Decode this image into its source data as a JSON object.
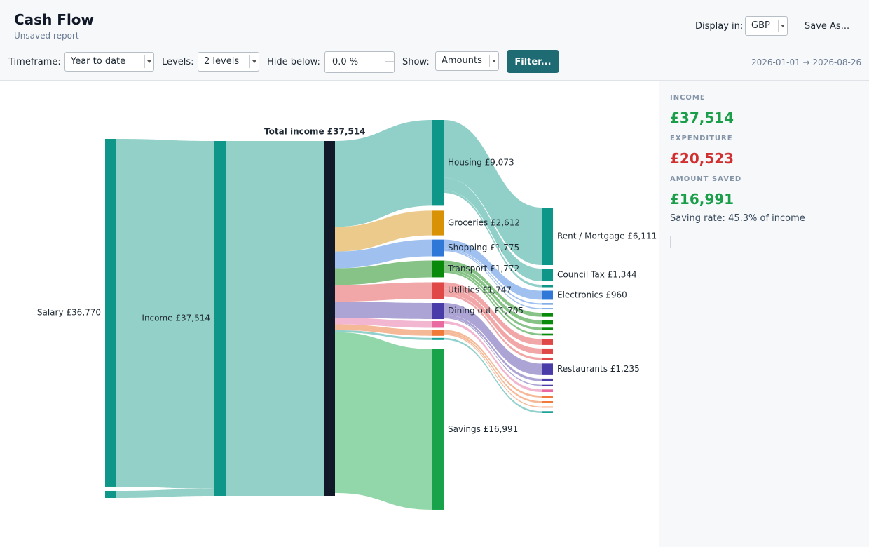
{
  "header": {
    "title": "Cash Flow",
    "subtitle": "Unsaved report",
    "display_label": "Display in:",
    "currency": "GBP",
    "save_as": "Save As...",
    "date_range": "2026-01-01 → 2026-08-26"
  },
  "toolbar": {
    "timeframe_label": "Timeframe:",
    "timeframe_value": "Year to date",
    "levels_label": "Levels:",
    "levels_value": "2 levels",
    "hide_label": "Hide below:",
    "hide_value": "0.0 %",
    "show_label": "Show:",
    "show_value": "Amounts",
    "filter_label": "Filter..."
  },
  "summary": {
    "income_label": "INCOME",
    "income_value": "£37,514",
    "expenditure_label": "EXPENDITURE",
    "expenditure_value": "£20,523",
    "saved_label": "AMOUNT SAVED",
    "saved_value": "£16,991",
    "saving_rate": "Saving rate: 45.3% of income",
    "colors": {
      "income": "#1a9e4a",
      "expenditure": "#d12f2f",
      "saved": "#1a9e4a"
    }
  },
  "chart_data": {
    "type": "sankey",
    "nodes": {
      "salary": {
        "label": "Salary",
        "amount": "£36,770",
        "value": 36770
      },
      "other_income": {
        "value": 744
      },
      "income": {
        "label": "Income",
        "amount": "£37,514",
        "value": 37514
      },
      "total": {
        "label": "Total income",
        "amount": "£37,514",
        "value": 37514
      },
      "categories": [
        {
          "id": "housing",
          "label": "Housing",
          "amount": "£9,073",
          "value": 9073,
          "color": "#0e9688"
        },
        {
          "id": "groceries",
          "label": "Groceries",
          "amount": "£2,612",
          "value": 2612,
          "color": "#d99206"
        },
        {
          "id": "shopping",
          "label": "Shopping",
          "amount": "£1,775",
          "value": 1775,
          "color": "#2f78d8"
        },
        {
          "id": "transport",
          "label": "Transport",
          "amount": "£1,772",
          "value": 1772,
          "color": "#0a8a0a"
        },
        {
          "id": "utilities",
          "label": "Utilities",
          "amount": "£1,747",
          "value": 1747,
          "color": "#e04848"
        },
        {
          "id": "dining",
          "label": "Dining out",
          "amount": "£1,705",
          "value": 1705,
          "color": "#4a3ca8"
        },
        {
          "id": "pink",
          "label": "",
          "amount": "",
          "value": 700,
          "color": "#e86aa0"
        },
        {
          "id": "orange",
          "label": "",
          "amount": "",
          "value": 620,
          "color": "#ef7a3a"
        },
        {
          "id": "teal",
          "label": "",
          "amount": "",
          "value": 220,
          "color": "#17a095"
        },
        {
          "id": "savings",
          "label": "Savings",
          "amount": "£16,991",
          "value": 16991,
          "color": "#18a34a"
        }
      ],
      "subcategories": [
        {
          "label": "Rent / Mortgage",
          "amount": "£6,111",
          "value": 6111,
          "color": "#0e9688",
          "parent": "housing"
        },
        {
          "label": "Council Tax",
          "amount": "£1,344",
          "value": 1344,
          "color": "#0e9688",
          "parent": "housing"
        },
        {
          "label": "",
          "amount": "",
          "value": 260,
          "color": "#0e9688",
          "parent": "housing"
        },
        {
          "label": "Electronics",
          "amount": "£960",
          "value": 960,
          "color": "#2f78d8",
          "parent": "shopping"
        },
        {
          "label": "",
          "amount": "",
          "value": 150,
          "color": "#2f78d8",
          "parent": "shopping"
        },
        {
          "label": "",
          "amount": "",
          "value": 120,
          "color": "#2f78d8",
          "parent": "shopping"
        },
        {
          "label": "",
          "amount": "",
          "value": 420,
          "color": "#0a8a0a",
          "parent": "transport"
        },
        {
          "label": "",
          "amount": "",
          "value": 420,
          "color": "#0a8a0a",
          "parent": "transport"
        },
        {
          "label": "",
          "amount": "",
          "value": 250,
          "color": "#0a8a0a",
          "parent": "transport"
        },
        {
          "label": "",
          "amount": "",
          "value": 200,
          "color": "#0a8a0a",
          "parent": "transport"
        },
        {
          "label": "",
          "amount": "",
          "value": 640,
          "color": "#e04848",
          "parent": "utilities"
        },
        {
          "label": "",
          "amount": "",
          "value": 600,
          "color": "#e04848",
          "parent": "utilities"
        },
        {
          "label": "",
          "amount": "",
          "value": 250,
          "color": "#e04848",
          "parent": "utilities"
        },
        {
          "label": "Restaurants",
          "amount": "£1,235",
          "value": 1235,
          "color": "#4a3ca8",
          "parent": "dining"
        },
        {
          "label": "",
          "amount": "",
          "value": 280,
          "color": "#4a3ca8",
          "parent": "dining"
        },
        {
          "label": "",
          "amount": "",
          "value": 120,
          "color": "#4a3ca8",
          "parent": "dining"
        },
        {
          "label": "",
          "amount": "",
          "value": 280,
          "color": "#e86aa0",
          "parent": "pink"
        },
        {
          "label": "",
          "amount": "",
          "value": 220,
          "color": "#ef7a3a",
          "parent": "orange"
        },
        {
          "label": "",
          "amount": "",
          "value": 200,
          "color": "#ef7a3a",
          "parent": "orange"
        },
        {
          "label": "",
          "amount": "",
          "value": 120,
          "color": "#ef7a3a",
          "parent": "orange"
        },
        {
          "label": "",
          "amount": "",
          "value": 200,
          "color": "#17a095",
          "parent": "teal"
        }
      ]
    }
  }
}
